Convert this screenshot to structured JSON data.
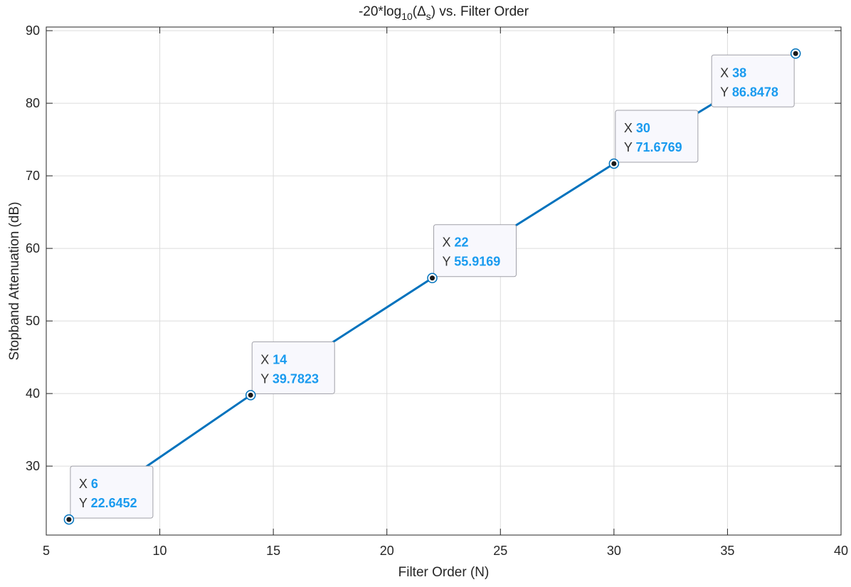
{
  "chart_data": {
    "type": "line",
    "title_prefix": "-20*log",
    "title_subscript": "10",
    "title_paren_open": "(",
    "title_delta": "Δ",
    "title_delta_sub": "s",
    "title_suffix": ") vs. Filter Order",
    "xlabel": "Filter Order (N)",
    "ylabel": "Stopband Attenuation (dB)",
    "xlim": [
      5,
      40
    ],
    "ylim": [
      20.5,
      90.5
    ],
    "xticks": [
      5,
      10,
      15,
      20,
      25,
      30,
      35,
      40
    ],
    "yticks": [
      30,
      40,
      50,
      60,
      70,
      80,
      90
    ],
    "grid": true,
    "series": [
      {
        "x": [
          6,
          14,
          22,
          30,
          38
        ],
        "y": [
          22.6452,
          39.7823,
          55.9169,
          71.6769,
          86.8478
        ]
      }
    ],
    "datatips": [
      {
        "x_label": "X",
        "x_value": "6",
        "y_label": "Y",
        "y_value": "22.6452"
      },
      {
        "x_label": "X",
        "x_value": "14",
        "y_label": "Y",
        "y_value": "39.7823"
      },
      {
        "x_label": "X",
        "x_value": "22",
        "y_label": "Y",
        "y_value": "55.9169"
      },
      {
        "x_label": "X",
        "x_value": "30",
        "y_label": "Y",
        "y_value": "71.6769"
      },
      {
        "x_label": "X",
        "x_value": "38",
        "y_label": "Y",
        "y_value": "86.8478"
      }
    ],
    "colors": {
      "line": "#0072BD",
      "tip_value": "#1A9BEF",
      "tip_label": "#333333",
      "grid": "#DCDCDC",
      "axis": "#262626"
    }
  }
}
